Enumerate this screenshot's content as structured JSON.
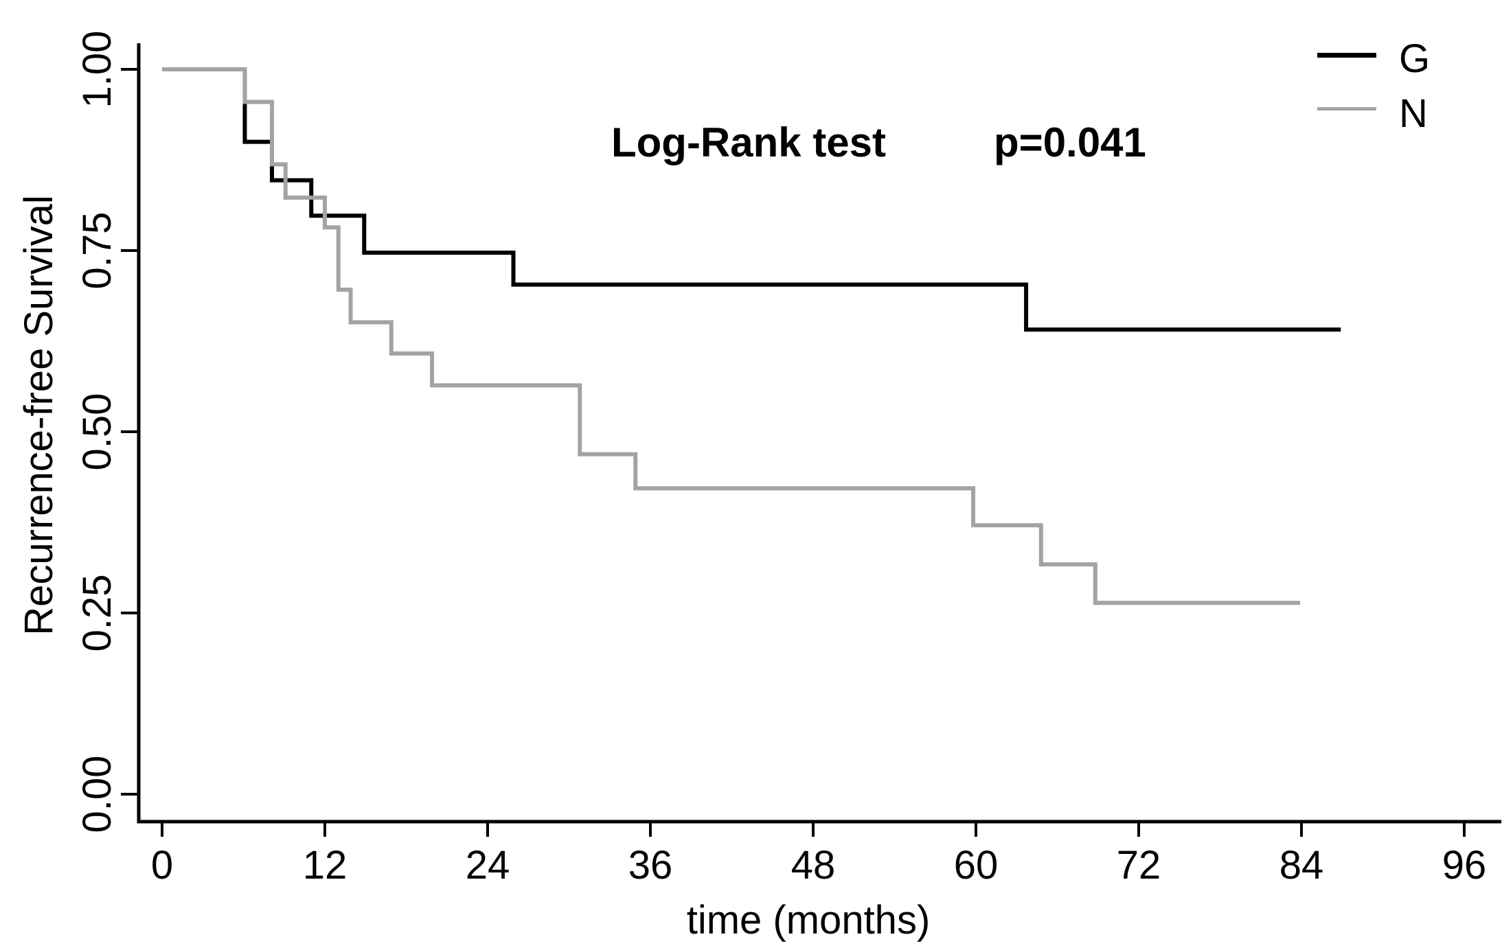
{
  "annotation": {
    "test_label": "Log-Rank test",
    "p_value": "p=0.041"
  },
  "axes": {
    "x": {
      "label": "time (months)",
      "tick_values": [
        0,
        12,
        24,
        36,
        48,
        60,
        72,
        84,
        96
      ],
      "tick_labels": [
        "0",
        "12",
        "24",
        "36",
        "48",
        "60",
        "72",
        "84",
        "96"
      ],
      "range": [
        0,
        96
      ]
    },
    "y": {
      "label": "Recurrence-free Survival",
      "tick_values": [
        0,
        0.25,
        0.5,
        0.75,
        1
      ],
      "tick_labels": [
        "0.00",
        "0.25",
        "0.50",
        "0.75",
        "1.00"
      ],
      "range": [
        0,
        1
      ]
    }
  },
  "legend": {
    "items": [
      {
        "label": "G",
        "color": "#000000"
      },
      {
        "label": "N",
        "color": "#a3a3a3"
      }
    ]
  },
  "chart_data": {
    "type": "line",
    "subtype": "kaplan-meier-step",
    "title": "",
    "xlabel": "time (months)",
    "ylabel": "Recurrence-free Survival",
    "xlim": [
      0,
      96
    ],
    "ylim": [
      0,
      1
    ],
    "grid": false,
    "legend_position": "top-right",
    "annotation": "Log-Rank test p=0.041",
    "series": [
      {
        "name": "G",
        "color": "#000000",
        "steps": [
          [
            0,
            1.0
          ],
          [
            6.1,
            0.9
          ],
          [
            8.1,
            0.847
          ],
          [
            11.0,
            0.798
          ],
          [
            14.9,
            0.747
          ],
          [
            25.9,
            0.703
          ],
          [
            63.7,
            0.641
          ]
        ],
        "end_time": 86.9
      },
      {
        "name": "N",
        "color": "#a3a3a3",
        "steps": [
          [
            0,
            1.0
          ],
          [
            6.1,
            0.955
          ],
          [
            8.1,
            0.869
          ],
          [
            9.1,
            0.823
          ],
          [
            12.0,
            0.782
          ],
          [
            13.0,
            0.696
          ],
          [
            13.9,
            0.651
          ],
          [
            16.9,
            0.608
          ],
          [
            19.9,
            0.564
          ],
          [
            30.8,
            0.469
          ],
          [
            34.9,
            0.422
          ],
          [
            59.8,
            0.371
          ],
          [
            64.8,
            0.317
          ],
          [
            68.8,
            0.264
          ]
        ],
        "end_time": 83.9
      }
    ]
  }
}
